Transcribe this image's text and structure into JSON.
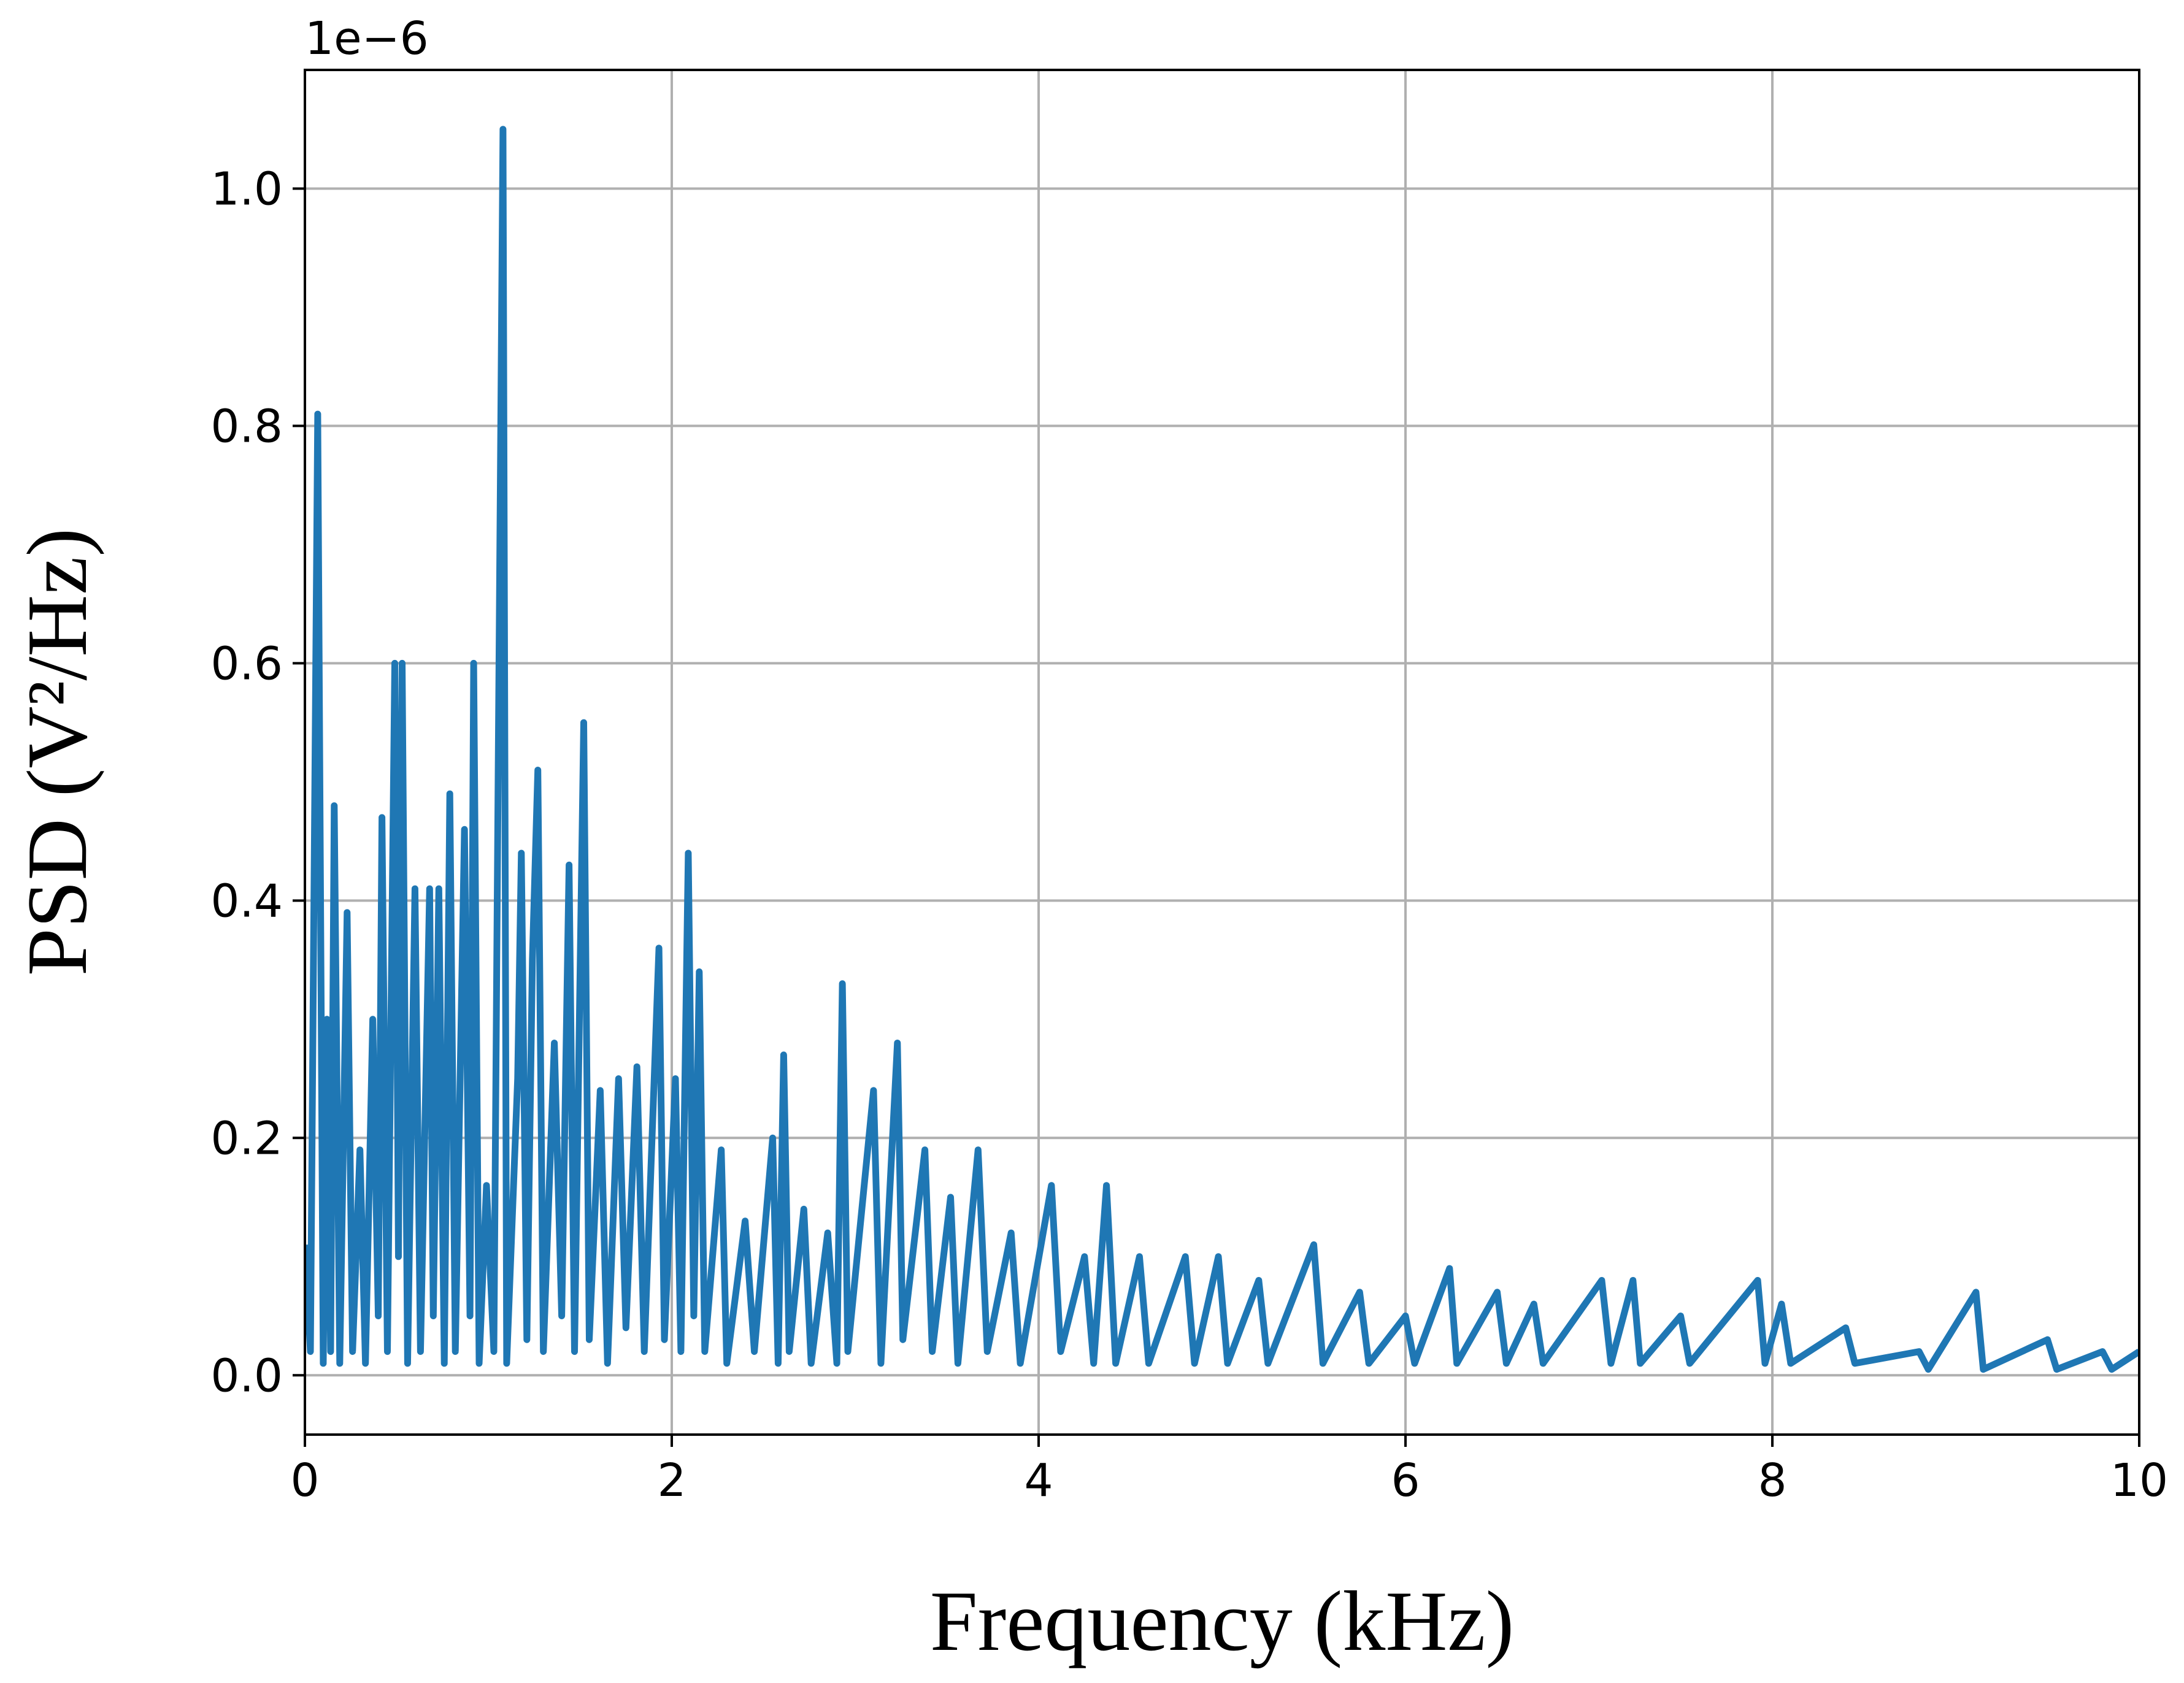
{
  "chart_data": {
    "type": "line",
    "xlabel": "Frequency (kHz)",
    "ylabel": "PSD (V²/Hz)",
    "y_offset_label": "1e−6",
    "color": "#1f77b4",
    "grid": true,
    "xlim": [
      0,
      10
    ],
    "ylim": [
      -0.05,
      1.1
    ],
    "xticks": [
      0,
      2,
      4,
      6,
      8,
      10
    ],
    "yticks": [
      {
        "value": 0,
        "label": "0.0"
      },
      0.2,
      0.4,
      0.6,
      0.8,
      {
        "value": 1,
        "label": "1.0"
      }
    ],
    "x": [
      0,
      0.03,
      0.07,
      0.1,
      0.12,
      0.14,
      0.16,
      0.19,
      0.23,
      0.26,
      0.3,
      0.33,
      0.37,
      0.4,
      0.42,
      0.45,
      0.49,
      0.51,
      0.53,
      0.56,
      0.6,
      0.63,
      0.68,
      0.7,
      0.73,
      0.76,
      0.79,
      0.82,
      0.87,
      0.9,
      0.92,
      0.95,
      0.99,
      1.03,
      1.08,
      1.1,
      1.16,
      1.18,
      1.21,
      1.24,
      1.27,
      1.3,
      1.36,
      1.4,
      1.44,
      1.47,
      1.52,
      1.55,
      1.61,
      1.65,
      1.71,
      1.75,
      1.81,
      1.85,
      1.93,
      1.96,
      2.02,
      2.05,
      2.09,
      2.12,
      2.15,
      2.18,
      2.27,
      2.3,
      2.4,
      2.45,
      2.55,
      2.58,
      2.61,
      2.64,
      2.72,
      2.76,
      2.85,
      2.9,
      2.93,
      2.96,
      3.1,
      3.14,
      3.23,
      3.26,
      3.38,
      3.42,
      3.52,
      3.56,
      3.67,
      3.72,
      3.85,
      3.9,
      4.07,
      4.12,
      4.25,
      4.3,
      4.37,
      4.42,
      4.55,
      4.6,
      4.8,
      4.85,
      4.98,
      5.03,
      5.2,
      5.25,
      5.5,
      5.55,
      5.75,
      5.8,
      6.0,
      6.05,
      6.24,
      6.28,
      6.5,
      6.55,
      6.7,
      6.75,
      7.07,
      7.12,
      7.24,
      7.28,
      7.5,
      7.55,
      7.92,
      7.96,
      8.05,
      8.1,
      8.4,
      8.45,
      8.8,
      8.85,
      9.11,
      9.15,
      9.5,
      9.55,
      9.8,
      9.85,
      10
    ],
    "values": [
      0.11,
      0.02,
      0.81,
      0.01,
      0.3,
      0.02,
      0.48,
      0.01,
      0.39,
      0.02,
      0.19,
      0.01,
      0.3,
      0.05,
      0.47,
      0.02,
      0.6,
      0.1,
      0.6,
      0.01,
      0.41,
      0.02,
      0.41,
      0.05,
      0.41,
      0.01,
      0.49,
      0.02,
      0.46,
      0.05,
      0.6,
      0.01,
      0.16,
      0.02,
      1.05,
      0.01,
      0.25,
      0.44,
      0.03,
      0.35,
      0.51,
      0.02,
      0.28,
      0.05,
      0.43,
      0.02,
      0.55,
      0.03,
      0.24,
      0.01,
      0.25,
      0.04,
      0.26,
      0.02,
      0.36,
      0.03,
      0.25,
      0.02,
      0.44,
      0.05,
      0.34,
      0.02,
      0.19,
      0.01,
      0.13,
      0.02,
      0.2,
      0.01,
      0.27,
      0.02,
      0.14,
      0.01,
      0.12,
      0.01,
      0.33,
      0.02,
      0.24,
      0.01,
      0.28,
      0.03,
      0.19,
      0.02,
      0.15,
      0.01,
      0.19,
      0.02,
      0.12,
      0.01,
      0.16,
      0.02,
      0.1,
      0.01,
      0.16,
      0.01,
      0.1,
      0.01,
      0.1,
      0.01,
      0.1,
      0.01,
      0.08,
      0.01,
      0.11,
      0.01,
      0.07,
      0.01,
      0.05,
      0.01,
      0.09,
      0.01,
      0.07,
      0.01,
      0.06,
      0.01,
      0.08,
      0.01,
      0.08,
      0.01,
      0.05,
      0.01,
      0.08,
      0.01,
      0.06,
      0.01,
      0.04,
      0.01,
      0.02,
      0.005,
      0.07,
      0.005,
      0.03,
      0.005,
      0.02,
      0.005,
      0.02
    ]
  }
}
